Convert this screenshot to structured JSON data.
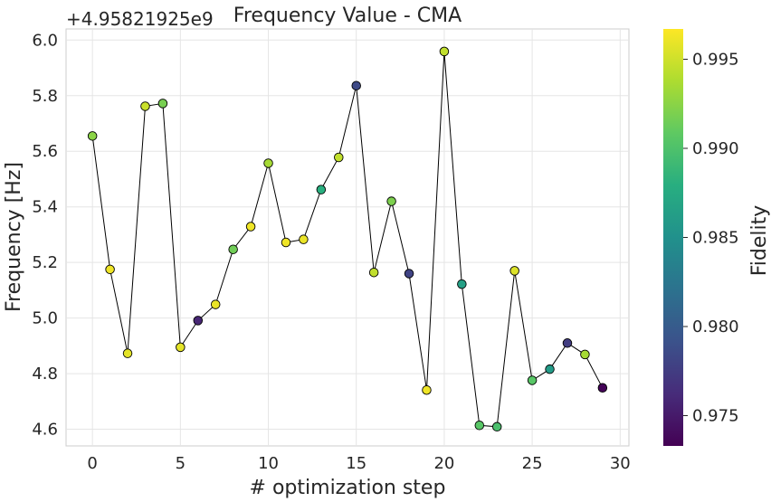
{
  "chart_data": {
    "type": "scatter",
    "title": "Frequency Value - CMA",
    "xlabel": "# optimization step",
    "ylabel": "Frequency [Hz]",
    "offset_text": "+4.95821925e9",
    "xlim": [
      -1.5,
      30.5
    ],
    "ylim": [
      4.54,
      6.04
    ],
    "xticks": [
      0,
      5,
      10,
      15,
      20,
      25,
      30
    ],
    "xtick_labels": [
      "0",
      "5",
      "10",
      "15",
      "20",
      "25",
      "30"
    ],
    "yticks": [
      4.6,
      4.8,
      5.0,
      5.2,
      5.4,
      5.6,
      5.8,
      6.0
    ],
    "ytick_labels": [
      "4.6",
      "4.8",
      "5.0",
      "5.2",
      "5.4",
      "5.6",
      "5.8",
      "6.0"
    ],
    "grid": true,
    "colorbar": {
      "label": "Fidelity",
      "colormap": "viridis",
      "range": [
        0.9733,
        0.9967
      ],
      "ticks": [
        0.975,
        0.98,
        0.985,
        0.99,
        0.995
      ],
      "tick_labels": [
        "0.975",
        "0.980",
        "0.985",
        "0.990",
        "0.995"
      ]
    },
    "line_color": "#000000",
    "x": [
      0,
      1,
      2,
      3,
      4,
      5,
      6,
      7,
      8,
      9,
      10,
      11,
      12,
      13,
      14,
      15,
      16,
      17,
      18,
      19,
      20,
      21,
      22,
      23,
      24,
      25,
      26,
      27,
      28,
      29
    ],
    "y": [
      5.655,
      5.175,
      4.873,
      5.762,
      5.772,
      4.895,
      4.991,
      5.049,
      5.247,
      5.329,
      5.557,
      5.272,
      5.283,
      5.462,
      5.578,
      5.836,
      5.164,
      5.42,
      5.16,
      4.741,
      5.959,
      5.122,
      4.614,
      4.609,
      5.17,
      4.776,
      4.816,
      4.91,
      4.869,
      4.749
    ],
    "fidelity": [
      0.9925,
      0.9962,
      0.9958,
      0.9948,
      0.9918,
      0.9958,
      0.9758,
      0.996,
      0.9915,
      0.9962,
      0.9935,
      0.9962,
      0.996,
      0.988,
      0.9945,
      0.9785,
      0.9945,
      0.992,
      0.978,
      0.9962,
      0.9945,
      0.9865,
      0.9905,
      0.9898,
      0.9955,
      0.9905,
      0.986,
      0.9775,
      0.9935,
      0.9735
    ]
  }
}
